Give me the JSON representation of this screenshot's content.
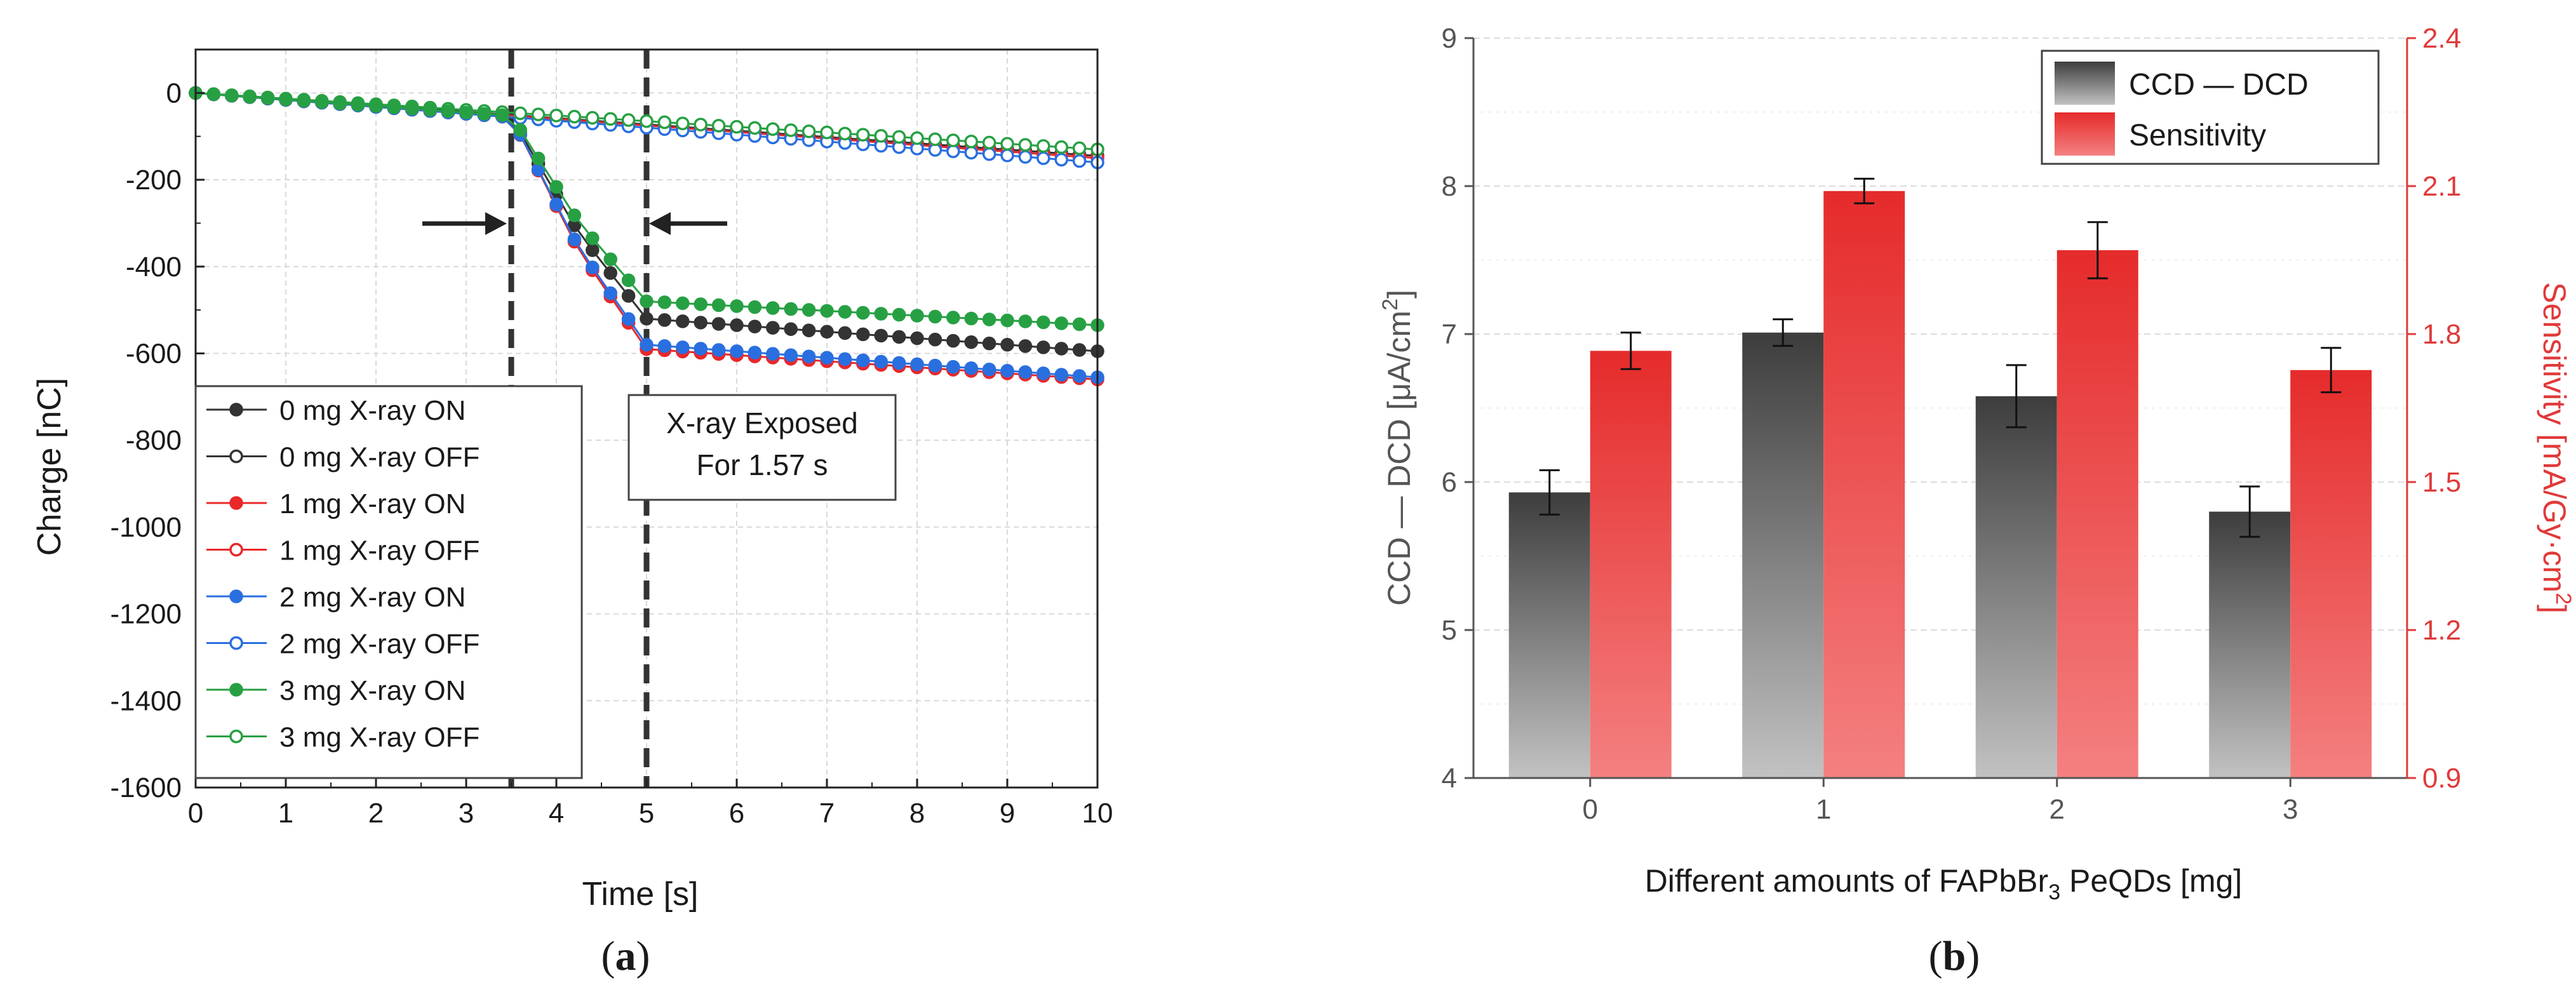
{
  "chart_data": [
    {
      "id": "a",
      "type": "line",
      "panel_label": "a",
      "xlabel": "Time [s]",
      "ylabel": "Charge [nC]",
      "xlim": [
        0,
        10
      ],
      "ylim": [
        -1600,
        100
      ],
      "xticks": [
        0,
        1,
        2,
        3,
        4,
        5,
        6,
        7,
        8,
        9,
        10
      ],
      "yticks": [
        0,
        -200,
        -400,
        -600,
        -800,
        -1000,
        -1200,
        -1400,
        -1600
      ],
      "grid": true,
      "x_start": 0,
      "x_step": 0.2,
      "n_points": 51,
      "exposure_lines_x": [
        3.5,
        5.0
      ],
      "annotation": {
        "line1": "X-ray Exposed",
        "line2": "For 1.57 s"
      },
      "legend": [
        "0 mg X-ray ON",
        "0 mg X-ray OFF",
        "1 mg X-ray ON",
        "1 mg X-ray OFF",
        "2 mg X-ray ON",
        "2 mg X-ray OFF",
        "3 mg X-ray ON",
        "3 mg X-ray OFF"
      ],
      "series": [
        {
          "name": "0 mg X-ray ON",
          "mode": "on",
          "color": "#333333",
          "slope": 16,
          "end_charge": -520,
          "final_charge": -595
        },
        {
          "name": "0 mg X-ray OFF",
          "mode": "off",
          "color": "#333333",
          "slope": 14,
          "final_charge": -145
        },
        {
          "name": "1 mg X-ray ON",
          "mode": "on",
          "color": "#e8282b",
          "slope": 16,
          "end_charge": -590,
          "final_charge": -660
        },
        {
          "name": "1 mg X-ray OFF",
          "mode": "off",
          "color": "#e8282b",
          "slope": 14,
          "final_charge": -150
        },
        {
          "name": "2 mg X-ray ON",
          "mode": "on",
          "color": "#2a6fe0",
          "slope": 16,
          "end_charge": -580,
          "final_charge": -655
        },
        {
          "name": "2 mg X-ray OFF",
          "mode": "off",
          "color": "#2a6fe0",
          "slope": 16,
          "final_charge": -160
        },
        {
          "name": "3 mg X-ray ON",
          "mode": "on",
          "color": "#27a043",
          "slope": 15,
          "end_charge": -480,
          "final_charge": -535
        },
        {
          "name": "3 mg X-ray OFF",
          "mode": "off",
          "color": "#27a043",
          "slope": 13,
          "final_charge": -130
        }
      ]
    },
    {
      "id": "b",
      "type": "bar",
      "panel_label": "b",
      "categories": [
        "0",
        "1",
        "2",
        "3"
      ],
      "xlabel_parts": [
        "Different amounts of FAPbBr",
        "3",
        " PeQDs [mg]"
      ],
      "ylabel_left_parts": [
        "CCD — DCD [μA/cm",
        "2",
        "]"
      ],
      "ylabel_right_parts": [
        "Sensitivity [mA/Gy·cm",
        "2",
        "]"
      ],
      "ylim_left": [
        4,
        9
      ],
      "ylim_right": [
        0.9,
        2.4
      ],
      "yticks_left": [
        "4",
        "5",
        "6",
        "7",
        "8",
        "9"
      ],
      "yticks_right": [
        "0.9",
        "1.2",
        "1.5",
        "1.8",
        "2.1",
        "2.4"
      ],
      "grid": true,
      "legend_position": "top-right",
      "series": [
        {
          "name": "CCD — DCD",
          "axis": "left",
          "color_top": "#3d3d3d",
          "color_bottom": "#bdbdbd",
          "values": [
            5.93,
            7.01,
            6.58,
            5.8
          ],
          "errors": [
            0.15,
            0.09,
            0.21,
            0.17
          ]
        },
        {
          "name": "Sensitivity",
          "axis": "right",
          "color_top": "#e52b2b",
          "color_bottom": "#f47b7b",
          "values": [
            1.766,
            2.09,
            1.97,
            1.727
          ],
          "errors": [
            0.037,
            0.025,
            0.057,
            0.045
          ]
        }
      ],
      "right_axis_color": "#e03a3a"
    }
  ]
}
